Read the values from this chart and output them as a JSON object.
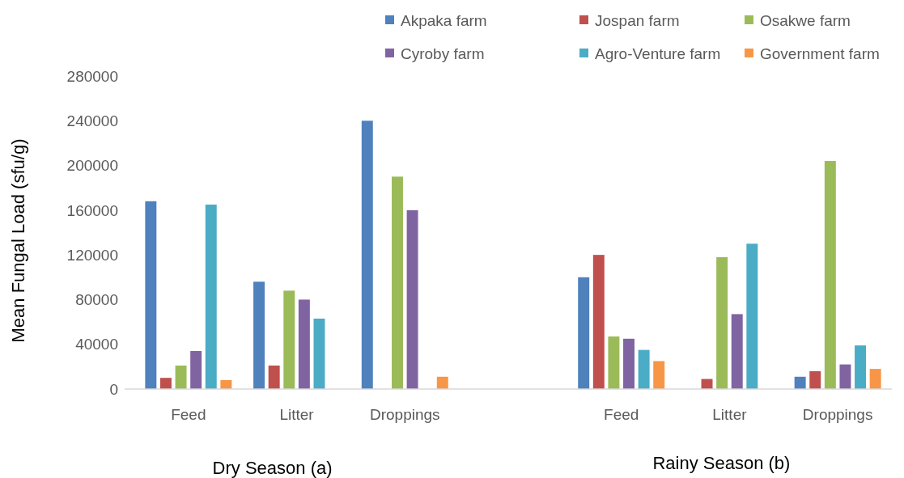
{
  "chart_data": {
    "type": "bar",
    "ylabel": "Mean Fungal Load (sfu/g)",
    "categories": [
      "Feed",
      "Litter",
      "Droppings",
      null,
      "Feed",
      "Litter",
      "Droppings"
    ],
    "series": [
      {
        "name": "Akpaka farm",
        "color": "#4f81bd",
        "values": [
          168000,
          96000,
          240000,
          null,
          100000,
          null,
          11000
        ]
      },
      {
        "name": "Jospan farm",
        "color": "#c0504d",
        "values": [
          10000,
          21000,
          null,
          null,
          120000,
          9000,
          16000
        ]
      },
      {
        "name": "Osakwe farm",
        "color": "#9bbb59",
        "values": [
          21000,
          88000,
          190000,
          null,
          47000,
          118000,
          204000
        ]
      },
      {
        "name": "Cyroby farm",
        "color": "#8064a2",
        "values": [
          34000,
          80000,
          160000,
          null,
          45000,
          67000,
          22000
        ]
      },
      {
        "name": "Agro-Venture farm",
        "color": "#4bacc6",
        "values": [
          165000,
          63000,
          null,
          null,
          35000,
          130000,
          39000
        ]
      },
      {
        "name": "Government farm",
        "color": "#f79646",
        "values": [
          8000,
          null,
          11000,
          null,
          25000,
          null,
          18000
        ]
      }
    ],
    "ylim": [
      0,
      280000
    ],
    "yticks": [
      0,
      40000,
      80000,
      120000,
      160000,
      200000,
      240000,
      280000
    ],
    "grid": false,
    "legend": "top right",
    "annotations": [
      "Dry Season (a)",
      "Rainy Season (b)"
    ]
  }
}
